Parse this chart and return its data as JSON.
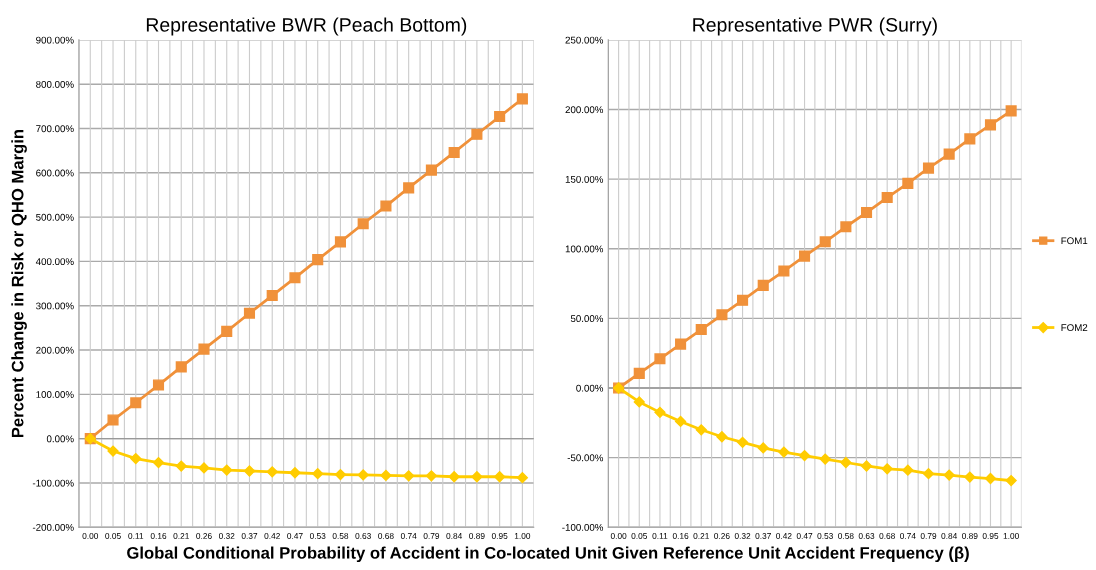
{
  "chart_data": [
    {
      "type": "line",
      "title": "Representative BWR (Peach Bottom)",
      "ylabel": "Percent Change in Risk or QHO Margin",
      "xlabel": "Global Conditional Probability of Accident in Co-located Unit Given Reference Unit Accident Frequency (β)",
      "categories": [
        "0.00",
        "0.05",
        "0.11",
        "0.16",
        "0.21",
        "0.26",
        "0.32",
        "0.37",
        "0.42",
        "0.47",
        "0.53",
        "0.58",
        "0.63",
        "0.68",
        "0.74",
        "0.79",
        "0.84",
        "0.89",
        "0.95",
        "1.00"
      ],
      "series": [
        {
          "name": "FOM1",
          "color": "#f0913a",
          "marker": "square",
          "values": [
            0,
            42,
            81,
            121,
            162,
            202,
            242,
            283,
            323,
            363,
            404,
            444,
            485,
            525,
            566,
            606,
            646,
            687,
            727,
            767
          ]
        },
        {
          "name": "FOM2",
          "color": "#ffcc00",
          "marker": "diamond",
          "values": [
            0,
            -28,
            -45,
            -54,
            -62,
            -66,
            -71,
            -73,
            -75,
            -77,
            -79,
            -81,
            -82,
            -83,
            -84,
            -84,
            -86,
            -86,
            -86,
            -88
          ]
        }
      ],
      "ylim": [
        -200,
        900
      ],
      "yticks": [
        {
          "value": -200,
          "label": "-200.00%"
        },
        {
          "value": -100,
          "label": "-100.00%"
        },
        {
          "value": 0,
          "label": "0.00%"
        },
        {
          "value": 100,
          "label": "100.00%"
        },
        {
          "value": 200,
          "label": "200.00%"
        },
        {
          "value": 300,
          "label": "300.00%"
        },
        {
          "value": 400,
          "label": "400.00%"
        },
        {
          "value": 500,
          "label": "500.00%"
        },
        {
          "value": 600,
          "label": "600.00%"
        },
        {
          "value": 700,
          "label": "700.00%"
        },
        {
          "value": 800,
          "label": "800.00%"
        },
        {
          "value": 900,
          "label": "900.00%"
        }
      ],
      "grid": true,
      "legend": "right"
    },
    {
      "type": "line",
      "title": "Representative PWR (Surry)",
      "categories": [
        "0.00",
        "0.05",
        "0.11",
        "0.16",
        "0.21",
        "0.26",
        "0.32",
        "0.37",
        "0.42",
        "0.47",
        "0.53",
        "0.58",
        "0.63",
        "0.68",
        "0.74",
        "0.79",
        "0.84",
        "0.89",
        "0.95",
        "1.00"
      ],
      "series": [
        {
          "name": "FOM1",
          "color": "#f0913a",
          "marker": "square",
          "values": [
            0,
            10.5,
            21,
            31.5,
            42,
            52.6,
            63,
            73.7,
            84,
            94.7,
            105,
            115.8,
            126,
            136.8,
            147,
            157.9,
            168,
            178.9,
            189,
            199
          ]
        },
        {
          "name": "FOM2",
          "color": "#ffcc00",
          "marker": "diamond",
          "values": [
            0,
            -10,
            -17.5,
            -24,
            -30,
            -35,
            -39,
            -43,
            -46,
            -48.5,
            -51,
            -53.5,
            -56,
            -58,
            -59,
            -61.5,
            -62.5,
            -64,
            -65,
            -66.5
          ]
        }
      ],
      "ylim": [
        -100,
        250
      ],
      "yticks": [
        {
          "value": -100,
          "label": "-100.00%"
        },
        {
          "value": -50,
          "label": "-50.00%"
        },
        {
          "value": 0,
          "label": "0.00%"
        },
        {
          "value": 50,
          "label": "50.00%"
        },
        {
          "value": 100,
          "label": "100.00%"
        },
        {
          "value": 150,
          "label": "150.00%"
        },
        {
          "value": 200,
          "label": "200.00%"
        },
        {
          "value": 250,
          "label": "250.00%"
        }
      ],
      "grid": true,
      "legend": "right"
    }
  ]
}
